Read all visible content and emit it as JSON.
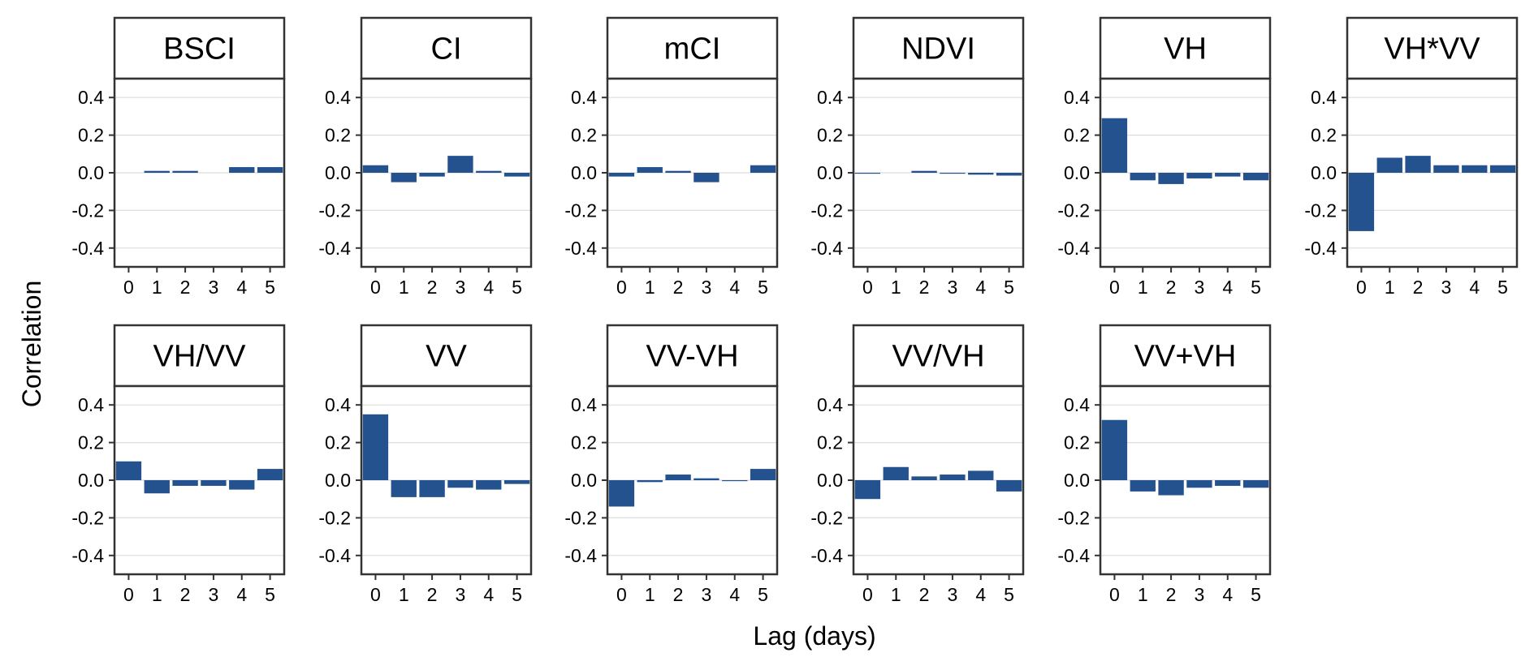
{
  "chart_data": {
    "type": "bar",
    "xlabel": "Lag (days)",
    "ylabel": "Correlation",
    "ylim": [
      -0.5,
      0.5
    ],
    "yticks": [
      0.4,
      0.2,
      0.0,
      -0.2,
      -0.4
    ],
    "ytick_labels": [
      "0.4",
      "0.2",
      "0.0",
      "-0.2",
      "-0.4"
    ],
    "categories": [
      "0",
      "1",
      "2",
      "3",
      "4",
      "5"
    ],
    "bar_color": "#24528f",
    "grid": true,
    "facets": [
      {
        "name": "BSCI",
        "values": [
          0.0,
          0.01,
          0.01,
          0.0,
          0.03,
          0.03
        ]
      },
      {
        "name": "CI",
        "values": [
          0.04,
          -0.05,
          -0.02,
          0.09,
          0.01,
          -0.02
        ]
      },
      {
        "name": "mCI",
        "values": [
          -0.02,
          0.03,
          0.01,
          -0.05,
          0.0,
          0.04
        ]
      },
      {
        "name": "NDVI",
        "values": [
          -0.005,
          0.0,
          0.01,
          -0.005,
          -0.01,
          -0.015
        ]
      },
      {
        "name": "VH",
        "values": [
          0.29,
          -0.04,
          -0.06,
          -0.03,
          -0.02,
          -0.04
        ]
      },
      {
        "name": "VH*VV",
        "values": [
          -0.31,
          0.08,
          0.09,
          0.04,
          0.04,
          0.04
        ]
      },
      {
        "name": "VH/VV",
        "values": [
          0.1,
          -0.07,
          -0.03,
          -0.03,
          -0.05,
          0.06
        ]
      },
      {
        "name": "VV",
        "values": [
          0.35,
          -0.09,
          -0.09,
          -0.04,
          -0.05,
          -0.02
        ]
      },
      {
        "name": "VV-VH",
        "values": [
          -0.14,
          -0.01,
          0.03,
          0.01,
          -0.005,
          0.06
        ]
      },
      {
        "name": "VV/VH",
        "values": [
          -0.1,
          0.07,
          0.02,
          0.03,
          0.05,
          -0.06
        ]
      },
      {
        "name": "VV+VH",
        "values": [
          0.32,
          -0.06,
          -0.08,
          -0.04,
          -0.03,
          -0.04
        ]
      }
    ]
  }
}
